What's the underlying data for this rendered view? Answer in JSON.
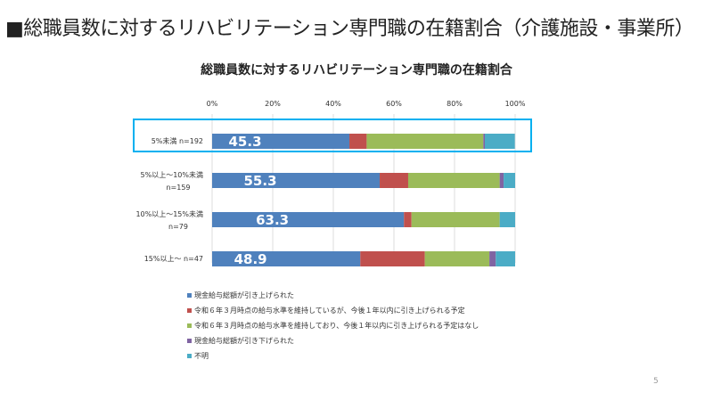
{
  "slide": {
    "title": "■総職員数に対するリハビリテーション専門職の在籍割合（介護施設・事業所）",
    "page_number": "5"
  },
  "chart_data": {
    "type": "bar",
    "orientation": "horizontal",
    "stacked": "100%",
    "title": "総職員数に対するリハビリテーション専門職の在籍割合",
    "categories": [
      "5%未満 n=192",
      "5%以上～10%未満 n=159",
      "10%以上～15%未満 n=79",
      "15%以上～ n=47"
    ],
    "xticks": [
      "0%",
      "20%",
      "40%",
      "60%",
      "80%",
      "100%"
    ],
    "xlim": [
      0,
      100
    ],
    "grid": true,
    "legend_position": "bottom",
    "highlighted_category": "5%未満 n=192",
    "highlight_color": "#00b0f0",
    "series": [
      {
        "name": "現金給与総額が引き上げられた",
        "color": "#4f81bd",
        "values": [
          45.3,
          55.3,
          63.3,
          48.9
        ],
        "labels": [
          "45.3",
          "55.3",
          "63.3",
          "48.9"
        ]
      },
      {
        "name": "令和６年３月時点の給与水準を維持しているが、今後１年以内に引き上げられる予定",
        "color": "#c0504d",
        "values": [
          5.7,
          9.4,
          2.5,
          21.3
        ]
      },
      {
        "name": "令和６年３月時点の給与水準を維持しており、今後１年以内に引き上げられる予定はなし",
        "color": "#9bbb59",
        "values": [
          38.5,
          30.2,
          29.1,
          21.3
        ]
      },
      {
        "name": "現金給与総額が引き下げられた",
        "color": "#8064a2",
        "values": [
          0.5,
          1.3,
          0,
          2.1
        ]
      },
      {
        "name": "不明",
        "color": "#4bacc6",
        "values": [
          9.9,
          3.8,
          5.1,
          6.4
        ]
      }
    ]
  }
}
